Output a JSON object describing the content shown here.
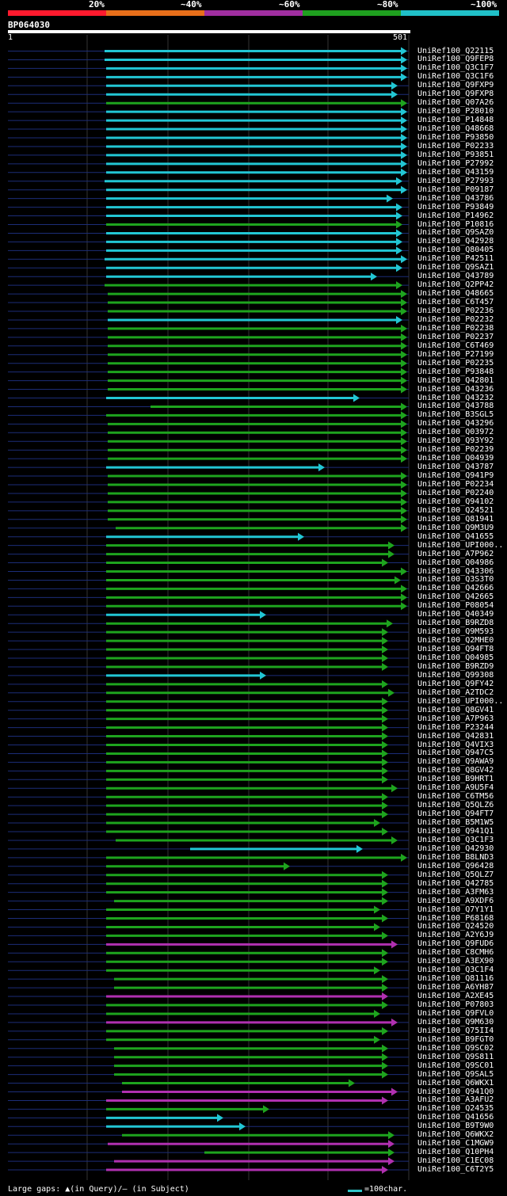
{
  "legend": {
    "labels": [
      "20%",
      "~40%",
      "~60%",
      "~80%",
      "~100%"
    ],
    "colors": [
      "#ff1a2e",
      "#e86f1a",
      "#a02ea0",
      "#1fa01f",
      "#20c0c8"
    ]
  },
  "query": {
    "name": "BP064030",
    "start": "1",
    "end": "501"
  },
  "palette": {
    "cyan": "#22c6d4",
    "green": "#1ea41e",
    "magenta": "#b030b0",
    "faint": "#1c2d78",
    "grid": "#333"
  },
  "hits": [
    {
      "name": "UniRef100_Q22115",
      "c": "cyan",
      "s": 132,
      "e": 514,
      "l": 0
    },
    {
      "name": "UniRef100_Q9FEP8",
      "c": "cyan",
      "s": 132,
      "e": 514,
      "l": 0
    },
    {
      "name": "UniRef100_Q3C1F7",
      "c": "cyan",
      "s": 134,
      "e": 514,
      "l": 0
    },
    {
      "name": "UniRef100_Q3C1F6",
      "c": "cyan",
      "s": 134,
      "e": 514,
      "l": 0
    },
    {
      "name": "UniRef100_Q9FXP9",
      "c": "cyan",
      "s": 134,
      "e": 502,
      "l": 0
    },
    {
      "name": "UniRef100_Q9FXP8",
      "c": "cyan",
      "s": 134,
      "e": 502,
      "l": 0
    },
    {
      "name": "UniRef100_Q07A26",
      "c": "green",
      "s": 134,
      "e": 514,
      "l": 0
    },
    {
      "name": "UniRef100_P28010",
      "c": "cyan",
      "s": 134,
      "e": 514,
      "l": 0
    },
    {
      "name": "UniRef100_P14848",
      "c": "cyan",
      "s": 134,
      "e": 514,
      "l": 0
    },
    {
      "name": "UniRef100_Q48668",
      "c": "cyan",
      "s": 134,
      "e": 514,
      "l": 0
    },
    {
      "name": "UniRef100_P93850",
      "c": "cyan",
      "s": 134,
      "e": 514,
      "l": 0
    },
    {
      "name": "UniRef100_P02233",
      "c": "cyan",
      "s": 134,
      "e": 514,
      "l": 0
    },
    {
      "name": "UniRef100_P93851",
      "c": "cyan",
      "s": 134,
      "e": 514,
      "l": 0
    },
    {
      "name": "UniRef100_P27992",
      "c": "cyan",
      "s": 134,
      "e": 514,
      "l": 0
    },
    {
      "name": "UniRef100_Q43159",
      "c": "cyan",
      "s": 134,
      "e": 514,
      "l": 0
    },
    {
      "name": "UniRef100_P27993",
      "c": "cyan",
      "s": 132,
      "e": 508,
      "l": 0
    },
    {
      "name": "UniRef100_P09187",
      "c": "cyan",
      "s": 134,
      "e": 514,
      "l": 0
    },
    {
      "name": "UniRef100_Q43786",
      "c": "cyan",
      "s": 134,
      "e": 496,
      "l": 0
    },
    {
      "name": "UniRef100_P93849",
      "c": "cyan",
      "s": 134,
      "e": 508,
      "l": 0
    },
    {
      "name": "UniRef100_P14962",
      "c": "cyan",
      "s": 134,
      "e": 508,
      "l": 0
    },
    {
      "name": "UniRef100_P10816",
      "c": "green",
      "s": 134,
      "e": 508,
      "l": 0
    },
    {
      "name": "UniRef100_Q9SAZ0",
      "c": "cyan",
      "s": 134,
      "e": 508,
      "l": 0
    },
    {
      "name": "UniRef100_Q42928",
      "c": "cyan",
      "s": 134,
      "e": 508,
      "l": 0
    },
    {
      "name": "UniRef100_Q80405",
      "c": "cyan",
      "s": 134,
      "e": 508,
      "l": 0
    },
    {
      "name": "UniRef100_P42511",
      "c": "cyan",
      "s": 132,
      "e": 514,
      "l": 0
    },
    {
      "name": "UniRef100_Q9SAZ1",
      "c": "cyan",
      "s": 134,
      "e": 508,
      "l": 0
    },
    {
      "name": "UniRef100_Q43789",
      "c": "cyan",
      "s": 134,
      "e": 476,
      "l": 0
    },
    {
      "name": "UniRef100_Q2PP42",
      "c": "green",
      "s": 132,
      "e": 508,
      "l": 0
    },
    {
      "name": "UniRef100_Q48665",
      "c": "green",
      "s": 136,
      "e": 514,
      "l": 0
    },
    {
      "name": "UniRef100_C6T457",
      "c": "green",
      "s": 136,
      "e": 514,
      "l": 0
    },
    {
      "name": "UniRef100_P02236",
      "c": "green",
      "s": 136,
      "e": 514,
      "l": 0
    },
    {
      "name": "UniRef100_P02232",
      "c": "cyan",
      "s": 136,
      "e": 508,
      "l": 0
    },
    {
      "name": "UniRef100_P02238",
      "c": "green",
      "s": 136,
      "e": 514,
      "l": 0
    },
    {
      "name": "UniRef100_P02237",
      "c": "green",
      "s": 136,
      "e": 514,
      "l": 0
    },
    {
      "name": "UniRef100_C6T469",
      "c": "green",
      "s": 136,
      "e": 514,
      "l": 0
    },
    {
      "name": "UniRef100_P27199",
      "c": "green",
      "s": 136,
      "e": 514,
      "l": 0
    },
    {
      "name": "UniRef100_P02235",
      "c": "green",
      "s": 136,
      "e": 514,
      "l": 0
    },
    {
      "name": "UniRef100_P93848",
      "c": "green",
      "s": 136,
      "e": 514,
      "l": 0
    },
    {
      "name": "UniRef100_Q42801",
      "c": "green",
      "s": 136,
      "e": 514,
      "l": 0
    },
    {
      "name": "UniRef100_Q43236",
      "c": "green",
      "s": 136,
      "e": 514,
      "l": 0
    },
    {
      "name": "UniRef100_Q43232",
      "c": "cyan",
      "s": 134,
      "e": 454,
      "l": 0
    },
    {
      "name": "UniRef100_Q43788",
      "c": "green",
      "s": 190,
      "e": 514,
      "l": 0
    },
    {
      "name": "UniRef100_B3SGL5",
      "c": "green",
      "s": 134,
      "e": 514,
      "l": 0
    },
    {
      "name": "UniRef100_Q43296",
      "c": "green",
      "s": 136,
      "e": 514,
      "l": 0
    },
    {
      "name": "UniRef100_Q03972",
      "c": "green",
      "s": 136,
      "e": 514,
      "l": 0
    },
    {
      "name": "UniRef100_Q93Y92",
      "c": "green",
      "s": 136,
      "e": 514,
      "l": 0
    },
    {
      "name": "UniRef100_P02239",
      "c": "green",
      "s": 136,
      "e": 514,
      "l": 0
    },
    {
      "name": "UniRef100_Q04939",
      "c": "green",
      "s": 136,
      "e": 514,
      "l": 0
    },
    {
      "name": "UniRef100_Q43787",
      "c": "cyan",
      "s": 134,
      "e": 410,
      "l": 0
    },
    {
      "name": "UniRef100_Q941P9",
      "c": "green",
      "s": 136,
      "e": 514,
      "l": 0
    },
    {
      "name": "UniRef100_P02234",
      "c": "green",
      "s": 136,
      "e": 514,
      "l": 0
    },
    {
      "name": "UniRef100_P02240",
      "c": "green",
      "s": 136,
      "e": 514,
      "l": 0
    },
    {
      "name": "UniRef100_Q94102",
      "c": "green",
      "s": 136,
      "e": 514,
      "l": 0
    },
    {
      "name": "UniRef100_Q24521",
      "c": "green",
      "s": 136,
      "e": 514,
      "l": 0
    },
    {
      "name": "UniRef100_Q81941",
      "c": "green",
      "s": 136,
      "e": 514,
      "l": 0
    },
    {
      "name": "UniRef100_Q9M3U9",
      "c": "green",
      "s": 146,
      "e": 514,
      "l": 0
    },
    {
      "name": "UniRef100_Q41655",
      "c": "cyan",
      "s": 134,
      "e": 384,
      "l": 0
    },
    {
      "name": "UniRef100_UPI000..",
      "c": "green",
      "s": 134,
      "e": 498,
      "l": 0
    },
    {
      "name": "UniRef100_A7P962",
      "c": "green",
      "s": 134,
      "e": 498,
      "l": 0
    },
    {
      "name": "UniRef100_Q04986",
      "c": "green",
      "s": 134,
      "e": 490,
      "l": 0
    },
    {
      "name": "UniRef100_Q43306",
      "c": "green",
      "s": 134,
      "e": 514,
      "l": 0
    },
    {
      "name": "UniRef100_Q3S3T0",
      "c": "green",
      "s": 134,
      "e": 506,
      "l": 0
    },
    {
      "name": "UniRef100_Q42666",
      "c": "green",
      "s": 134,
      "e": 514,
      "l": 0
    },
    {
      "name": "UniRef100_Q42665",
      "c": "green",
      "s": 134,
      "e": 514,
      "l": 0
    },
    {
      "name": "UniRef100_P08054",
      "c": "green",
      "s": 134,
      "e": 514,
      "l": 0
    },
    {
      "name": "UniRef100_Q40349",
      "c": "cyan",
      "s": 134,
      "e": 336,
      "l": 0
    },
    {
      "name": "UniRef100_B9RZD8",
      "c": "green",
      "s": 134,
      "e": 496,
      "l": 0
    },
    {
      "name": "UniRef100_Q9M593",
      "c": "green",
      "s": 134,
      "e": 490,
      "l": 0
    },
    {
      "name": "UniRef100_Q2MHE0",
      "c": "green",
      "s": 134,
      "e": 490,
      "l": 0
    },
    {
      "name": "UniRef100_Q94FT8",
      "c": "green",
      "s": 134,
      "e": 490,
      "l": 0
    },
    {
      "name": "UniRef100_Q04985",
      "c": "green",
      "s": 134,
      "e": 490,
      "l": 0
    },
    {
      "name": "UniRef100_B9RZD9",
      "c": "green",
      "s": 134,
      "e": 490,
      "l": 0
    },
    {
      "name": "UniRef100_Q99308",
      "c": "cyan",
      "s": 134,
      "e": 336,
      "l": 0
    },
    {
      "name": "UniRef100_Q9FY42",
      "c": "green",
      "s": 134,
      "e": 490,
      "l": 0
    },
    {
      "name": "UniRef100_A2TDC2",
      "c": "green",
      "s": 134,
      "e": 498,
      "l": 0
    },
    {
      "name": "UniRef100_UPI000..",
      "c": "green",
      "s": 134,
      "e": 490,
      "l": 0
    },
    {
      "name": "UniRef100_Q8GV41",
      "c": "green",
      "s": 134,
      "e": 490,
      "l": 0
    },
    {
      "name": "UniRef100_A7P963",
      "c": "green",
      "s": 134,
      "e": 490,
      "l": 0
    },
    {
      "name": "UniRef100_P23244",
      "c": "green",
      "s": 134,
      "e": 490,
      "l": 0
    },
    {
      "name": "UniRef100_Q42831",
      "c": "green",
      "s": 134,
      "e": 490,
      "l": 0
    },
    {
      "name": "UniRef100_Q4VIX3",
      "c": "green",
      "s": 134,
      "e": 490,
      "l": 0
    },
    {
      "name": "UniRef100_Q947C5",
      "c": "green",
      "s": 134,
      "e": 490,
      "l": 0
    },
    {
      "name": "UniRef100_Q9AWA9",
      "c": "green",
      "s": 134,
      "e": 490,
      "l": 0
    },
    {
      "name": "UniRef100_Q8GV42",
      "c": "green",
      "s": 134,
      "e": 490,
      "l": 0
    },
    {
      "name": "UniRef100_B9HRT1",
      "c": "green",
      "s": 134,
      "e": 490,
      "l": 0
    },
    {
      "name": "UniRef100_A9U5F4",
      "c": "green",
      "s": 134,
      "e": 502,
      "l": 0
    },
    {
      "name": "UniRef100_C6TM56",
      "c": "green",
      "s": 134,
      "e": 490,
      "l": 0
    },
    {
      "name": "UniRef100_Q5QLZ6",
      "c": "green",
      "s": 134,
      "e": 490,
      "l": 0
    },
    {
      "name": "UniRef100_Q94FT7",
      "c": "green",
      "s": 134,
      "e": 490,
      "l": 0
    },
    {
      "name": "UniRef100_B5M1W5",
      "c": "green",
      "s": 134,
      "e": 480,
      "l": 0
    },
    {
      "name": "UniRef100_Q941Q1",
      "c": "green",
      "s": 134,
      "e": 490,
      "l": 0
    },
    {
      "name": "UniRef100_Q3C1F3",
      "c": "green",
      "s": 146,
      "e": 502,
      "l": 0
    },
    {
      "name": "UniRef100_Q42930",
      "c": "cyan",
      "s": 240,
      "e": 458,
      "l": 0
    },
    {
      "name": "UniRef100_B8LND3",
      "c": "green",
      "s": 134,
      "e": 514,
      "l": 0
    },
    {
      "name": "UniRef100_Q96428",
      "c": "green",
      "s": 134,
      "e": 366,
      "l": 0
    },
    {
      "name": "UniRef100_Q5QLZ7",
      "c": "green",
      "s": 134,
      "e": 490,
      "l": 0
    },
    {
      "name": "UniRef100_Q42785",
      "c": "green",
      "s": 134,
      "e": 490,
      "l": 0
    },
    {
      "name": "UniRef100_A3FM63",
      "c": "green",
      "s": 134,
      "e": 490,
      "l": 0
    },
    {
      "name": "UniRef100_A9XDF6",
      "c": "green",
      "s": 144,
      "e": 490,
      "l": 0
    },
    {
      "name": "UniRef100_Q7Y1Y1",
      "c": "green",
      "s": 134,
      "e": 480,
      "l": 0
    },
    {
      "name": "UniRef100_P68168",
      "c": "green",
      "s": 134,
      "e": 490,
      "l": 0
    },
    {
      "name": "UniRef100_Q24520",
      "c": "green",
      "s": 134,
      "e": 480,
      "l": 0
    },
    {
      "name": "UniRef100_A2Y6J9",
      "c": "green",
      "s": 134,
      "e": 490,
      "l": 0
    },
    {
      "name": "UniRef100_Q9FUD6",
      "c": "magenta",
      "s": 134,
      "e": 502,
      "l": 0
    },
    {
      "name": "UniRef100_C8CMH6",
      "c": "green",
      "s": 134,
      "e": 490,
      "l": 0
    },
    {
      "name": "UniRef100_A3EX90",
      "c": "green",
      "s": 134,
      "e": 490,
      "l": 0
    },
    {
      "name": "UniRef100_Q3C1F4",
      "c": "green",
      "s": 134,
      "e": 480,
      "l": 0
    },
    {
      "name": "UniRef100_Q81116",
      "c": "green",
      "s": 144,
      "e": 490,
      "l": 0
    },
    {
      "name": "UniRef100_A6YH87",
      "c": "green",
      "s": 144,
      "e": 490,
      "l": 0
    },
    {
      "name": "UniRef100_A2XE45",
      "c": "magenta",
      "s": 134,
      "e": 490,
      "l": 0
    },
    {
      "name": "UniRef100_P07803",
      "c": "green",
      "s": 134,
      "e": 490,
      "l": 0
    },
    {
      "name": "UniRef100_Q9FVL0",
      "c": "green",
      "s": 134,
      "e": 480,
      "l": 0
    },
    {
      "name": "UniRef100_Q9M630",
      "c": "magenta",
      "s": 134,
      "e": 502,
      "l": 0
    },
    {
      "name": "UniRef100_Q75II4",
      "c": "green",
      "s": 134,
      "e": 490,
      "l": 0
    },
    {
      "name": "UniRef100_B9FGT0",
      "c": "green",
      "s": 134,
      "e": 480,
      "l": 0
    },
    {
      "name": "UniRef100_Q9SC02",
      "c": "green",
      "s": 144,
      "e": 490,
      "l": 0
    },
    {
      "name": "UniRef100_Q9S811",
      "c": "green",
      "s": 144,
      "e": 490,
      "l": 0
    },
    {
      "name": "UniRef100_Q9SC01",
      "c": "green",
      "s": 144,
      "e": 490,
      "l": 0
    },
    {
      "name": "UniRef100_Q9SAL5",
      "c": "green",
      "s": 144,
      "e": 490,
      "l": 0
    },
    {
      "name": "UniRef100_Q6WKX1",
      "c": "green",
      "s": 154,
      "e": 448,
      "l": 0
    },
    {
      "name": "UniRef100_Q941Q0",
      "c": "magenta",
      "s": 154,
      "e": 502,
      "l": 0
    },
    {
      "name": "UniRef100_A3AFU2",
      "c": "magenta",
      "s": 134,
      "e": 490,
      "l": 0
    },
    {
      "name": "UniRef100_Q24535",
      "c": "green",
      "s": 134,
      "e": 340,
      "l": 0
    },
    {
      "name": "UniRef100_Q41656",
      "c": "cyan",
      "s": 134,
      "e": 282,
      "l": 0
    },
    {
      "name": "UniRef100_B9T9W0",
      "c": "cyan",
      "s": 134,
      "e": 310,
      "l": 0
    },
    {
      "name": "UniRef100_Q6WKX2",
      "c": "green",
      "s": 154,
      "e": 498,
      "l": 0
    },
    {
      "name": "UniRef100_C1MGW9",
      "c": "magenta",
      "s": 136,
      "e": 498,
      "l": 0
    },
    {
      "name": "UniRef100_Q10PH4",
      "c": "green",
      "s": 258,
      "e": 498,
      "l": 0
    },
    {
      "name": "UniRef100_C1EC08",
      "c": "magenta",
      "s": 144,
      "e": 498,
      "l": 0
    },
    {
      "name": "UniRef100_C6T2Y5",
      "c": "magenta",
      "s": 134,
      "e": 490,
      "l": 0
    }
  ],
  "footer": {
    "left": "Large gaps: ▲(in Query)/– (in Subject)",
    "right": "=100char."
  }
}
